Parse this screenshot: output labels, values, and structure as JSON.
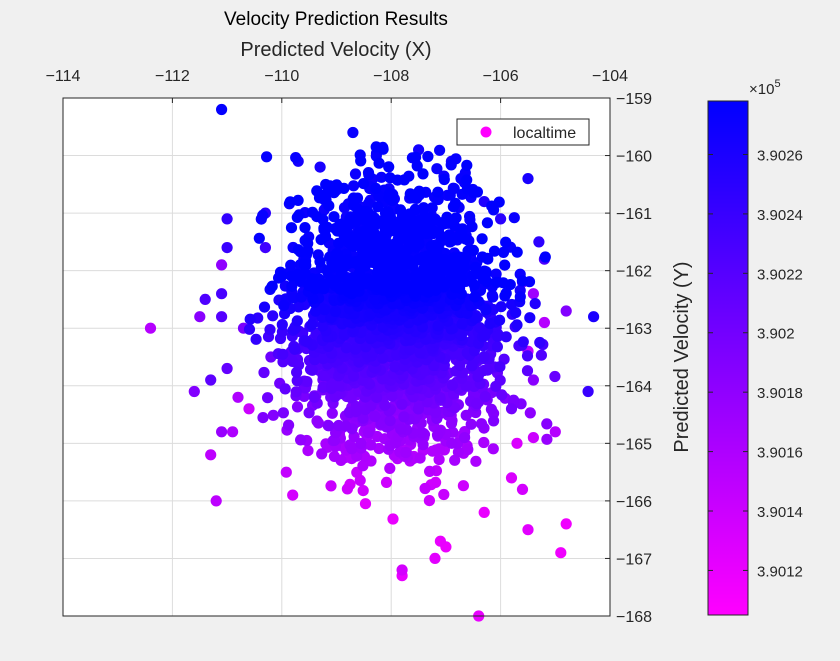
{
  "chart_data": {
    "type": "scatter",
    "title": "Velocity Prediction Results",
    "xlabel": "Predicted Velocity (X)",
    "ylabel": "Predicted Velocity (Y)",
    "x_axis_location": "top",
    "y_axis_location": "right",
    "xlim": [
      -114,
      -104
    ],
    "ylim": [
      -168,
      -159
    ],
    "xticks": [
      -114,
      -112,
      -110,
      -108,
      -106,
      -104
    ],
    "yticks": [
      -159,
      -160,
      -161,
      -162,
      -163,
      -164,
      -165,
      -166,
      -167,
      -168
    ],
    "grid": true,
    "legend": {
      "location": "top-right",
      "entries": [
        "localtime"
      ]
    },
    "colormap": {
      "low": "#ff00ff",
      "high": "#0000ff"
    },
    "colorbar": {
      "label": "Predicted Velocity (Y)",
      "exponent_label": "×10",
      "exponent": "5",
      "range": [
        3.90105,
        3.90278
      ],
      "ticks": [
        "3.9012",
        "3.9014",
        "3.9016",
        "3.9018",
        "3.902",
        "3.9022",
        "3.9024",
        "3.9026"
      ]
    },
    "series": [
      {
        "name": "localtime",
        "cluster_center": [
          -107.9,
          -162.8
        ],
        "cluster_spread": [
          0.95,
          1.1
        ],
        "points": [
          [
            -111.1,
            -159.2,
            3.90275
          ],
          [
            -108.7,
            -159.6,
            3.90272
          ],
          [
            -109.7,
            -160.1,
            3.90265
          ],
          [
            -109.3,
            -160.2,
            3.90262
          ],
          [
            -107.5,
            -159.9,
            3.90266
          ],
          [
            -106.9,
            -160.1,
            3.90262
          ],
          [
            -105.5,
            -160.4,
            3.90262
          ],
          [
            -109.0,
            -160.6,
            3.9026
          ],
          [
            -110.3,
            -161.0,
            3.9025
          ],
          [
            -111.0,
            -161.1,
            3.90245
          ],
          [
            -106.3,
            -160.8,
            3.90258
          ],
          [
            -106.0,
            -161.1,
            3.9025
          ],
          [
            -105.3,
            -161.5,
            3.90248
          ],
          [
            -111.0,
            -161.6,
            3.9024
          ],
          [
            -110.3,
            -161.6,
            3.90235
          ],
          [
            -105.2,
            -161.8,
            3.90225
          ],
          [
            -111.1,
            -161.9,
            3.9018
          ],
          [
            -105.6,
            -162.2,
            3.902
          ],
          [
            -111.4,
            -162.5,
            3.90225
          ],
          [
            -111.1,
            -162.8,
            3.9022
          ],
          [
            -111.1,
            -162.4,
            3.9023
          ],
          [
            -110.7,
            -163.0,
            3.90195
          ],
          [
            -104.3,
            -162.8,
            3.9026
          ],
          [
            -104.8,
            -162.7,
            3.9019
          ],
          [
            -105.2,
            -162.9,
            3.90155
          ],
          [
            -105.4,
            -162.4,
            3.9017
          ],
          [
            -112.4,
            -163.0,
            3.90155
          ],
          [
            -111.5,
            -162.8,
            3.90185
          ],
          [
            -111.0,
            -163.7,
            3.9021
          ],
          [
            -111.3,
            -163.9,
            3.90215
          ],
          [
            -111.6,
            -164.1,
            3.9019
          ],
          [
            -110.2,
            -163.5,
            3.90205
          ],
          [
            -105.5,
            -163.4,
            3.9015
          ],
          [
            -104.4,
            -164.1,
            3.9024
          ],
          [
            -105.4,
            -163.9,
            3.90185
          ],
          [
            -105.8,
            -164.4,
            3.902
          ],
          [
            -110.8,
            -164.2,
            3.9016
          ],
          [
            -110.6,
            -164.4,
            3.9014
          ],
          [
            -111.1,
            -164.8,
            3.90175
          ],
          [
            -110.9,
            -164.8,
            3.9016
          ],
          [
            -111.3,
            -165.2,
            3.9015
          ],
          [
            -105.0,
            -164.8,
            3.90155
          ],
          [
            -105.4,
            -164.9,
            3.9014
          ],
          [
            -105.7,
            -165.0,
            3.9013
          ],
          [
            -111.2,
            -166.0,
            3.9015
          ],
          [
            -109.8,
            -165.9,
            3.90135
          ],
          [
            -105.8,
            -165.6,
            3.9013
          ],
          [
            -105.6,
            -165.8,
            3.90135
          ],
          [
            -106.3,
            -166.2,
            3.9012
          ],
          [
            -105.5,
            -166.5,
            3.90125
          ],
          [
            -104.8,
            -166.4,
            3.90115
          ],
          [
            -104.9,
            -166.9,
            3.90115
          ],
          [
            -107.1,
            -166.7,
            3.9012
          ],
          [
            -107.0,
            -166.8,
            3.90118
          ],
          [
            -107.8,
            -167.2,
            3.90135
          ],
          [
            -107.8,
            -167.3,
            3.9012
          ],
          [
            -107.2,
            -167.0,
            3.90125
          ],
          [
            -106.4,
            -168.0,
            3.9012
          ]
        ]
      }
    ]
  }
}
